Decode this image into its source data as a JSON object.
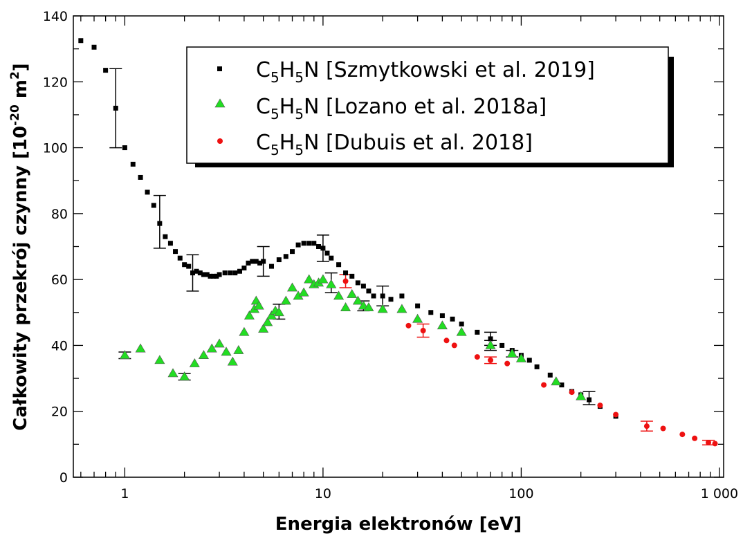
{
  "chart_data": {
    "type": "scatter",
    "title": "",
    "xlabel": "Energia elektronów [eV]",
    "ylabel": "Całkowity przekrój czynny [10⁻²⁰ m²]",
    "ylabel_parts": {
      "pre": "Całkowity przekrój czynny [10",
      "exp1": "-20",
      "mid": " m",
      "exp2": "2",
      "post": "]"
    },
    "x_scale": "log",
    "xlim": [
      0.55,
      1050
    ],
    "ylim": [
      0,
      140
    ],
    "x_ticks": [
      1,
      10,
      100,
      1000
    ],
    "x_tick_labels": [
      "1",
      "10",
      "100",
      "1 000"
    ],
    "y_ticks": [
      0,
      20,
      40,
      60,
      80,
      100,
      120,
      140
    ],
    "y_tick_labels": [
      "0",
      "20",
      "40",
      "60",
      "80",
      "100",
      "120",
      "140"
    ],
    "grid": false,
    "legend_position": "top-right",
    "series": [
      {
        "name": "C₅H₅N [Szmytkowski et al. 2019]",
        "label_parts": {
          "a": "C",
          "s1": "5",
          "b": "H",
          "s2": "5",
          "c": "N [Szmytkowski et al. 2019]"
        },
        "marker": "square",
        "color": "#000000",
        "points": [
          [
            0.6,
            132.5
          ],
          [
            0.7,
            130.5
          ],
          [
            0.8,
            123.5
          ],
          [
            0.9,
            112
          ],
          [
            1.0,
            100
          ],
          [
            1.1,
            95
          ],
          [
            1.2,
            91
          ],
          [
            1.3,
            86.5
          ],
          [
            1.4,
            82.5
          ],
          [
            1.5,
            77
          ],
          [
            1.6,
            73
          ],
          [
            1.7,
            71
          ],
          [
            1.8,
            68.5
          ],
          [
            1.9,
            66.5
          ],
          [
            2.0,
            64.5
          ],
          [
            2.1,
            64
          ],
          [
            2.2,
            62
          ],
          [
            2.3,
            62.5
          ],
          [
            2.4,
            62
          ],
          [
            2.5,
            61.5
          ],
          [
            2.6,
            61.5
          ],
          [
            2.7,
            61
          ],
          [
            2.8,
            61
          ],
          [
            2.9,
            61
          ],
          [
            3.0,
            61.5
          ],
          [
            3.2,
            62
          ],
          [
            3.4,
            62
          ],
          [
            3.6,
            62
          ],
          [
            3.8,
            62.5
          ],
          [
            4.0,
            63.5
          ],
          [
            4.2,
            65
          ],
          [
            4.4,
            65.5
          ],
          [
            4.6,
            65.5
          ],
          [
            4.8,
            65
          ],
          [
            5.0,
            65.5
          ],
          [
            5.5,
            64
          ],
          [
            6.0,
            66
          ],
          [
            6.5,
            67
          ],
          [
            7.0,
            68.5
          ],
          [
            7.5,
            70.5
          ],
          [
            8.0,
            71
          ],
          [
            8.5,
            71
          ],
          [
            9.0,
            71
          ],
          [
            9.5,
            70
          ],
          [
            10,
            69.5
          ],
          [
            10.5,
            68
          ],
          [
            11,
            66.5
          ],
          [
            12,
            64.5
          ],
          [
            13,
            62
          ],
          [
            14,
            61
          ],
          [
            15,
            59
          ],
          [
            16,
            58
          ],
          [
            17,
            56.5
          ],
          [
            18,
            55
          ],
          [
            20,
            55
          ],
          [
            22,
            54
          ],
          [
            25,
            55
          ],
          [
            30,
            52
          ],
          [
            35,
            50
          ],
          [
            40,
            49
          ],
          [
            45,
            48
          ],
          [
            50,
            46.5
          ],
          [
            60,
            44
          ],
          [
            70,
            42
          ],
          [
            80,
            40
          ],
          [
            90,
            38.5
          ],
          [
            100,
            37
          ],
          [
            110,
            35.5
          ],
          [
            120,
            33.5
          ],
          [
            140,
            31
          ],
          [
            160,
            28
          ],
          [
            180,
            26
          ],
          [
            200,
            25
          ],
          [
            220,
            23.5
          ],
          [
            250,
            21.5
          ],
          [
            300,
            18.5
          ]
        ],
        "error_bars": [
          [
            0.9,
            100,
            124
          ],
          [
            1.5,
            69.5,
            85.5
          ],
          [
            2.2,
            56.5,
            67.5
          ],
          [
            5.0,
            61,
            70
          ],
          [
            10,
            65.5,
            73.5
          ],
          [
            20,
            52,
            58
          ],
          [
            70,
            40,
            44
          ],
          [
            220,
            22,
            26
          ]
        ]
      },
      {
        "name": "C₅H₅N [Lozano et al. 2018a]",
        "label_parts": {
          "a": "C",
          "s1": "5",
          "b": "H",
          "s2": "5",
          "c": "N [Lozano et al. 2018a]"
        },
        "marker": "triangle",
        "color": "#22dd22",
        "points": [
          [
            1.0,
            37
          ],
          [
            1.2,
            39
          ],
          [
            1.5,
            35.5
          ],
          [
            1.75,
            31.5
          ],
          [
            2.0,
            30.5
          ],
          [
            2.25,
            34.5
          ],
          [
            2.5,
            37
          ],
          [
            2.75,
            39
          ],
          [
            3.0,
            40.5
          ],
          [
            3.25,
            38
          ],
          [
            3.5,
            35
          ],
          [
            3.75,
            38.5
          ],
          [
            4.0,
            44
          ],
          [
            4.25,
            49
          ],
          [
            4.5,
            51
          ],
          [
            4.6,
            53.5
          ],
          [
            4.75,
            52
          ],
          [
            5.0,
            45
          ],
          [
            5.25,
            47
          ],
          [
            5.5,
            49
          ],
          [
            5.75,
            50.5
          ],
          [
            6.0,
            50
          ],
          [
            6.5,
            53.5
          ],
          [
            7.0,
            57.5
          ],
          [
            7.5,
            55
          ],
          [
            8.0,
            56
          ],
          [
            8.5,
            60
          ],
          [
            9.0,
            58.5
          ],
          [
            9.5,
            59
          ],
          [
            10,
            60
          ],
          [
            11,
            58.5
          ],
          [
            12,
            55
          ],
          [
            13,
            51.5
          ],
          [
            14,
            55.5
          ],
          [
            15,
            53.5
          ],
          [
            16,
            52
          ],
          [
            17,
            51.5
          ],
          [
            20,
            51
          ],
          [
            25,
            51
          ],
          [
            30,
            48
          ],
          [
            40,
            46
          ],
          [
            50,
            44
          ],
          [
            70,
            40
          ],
          [
            90,
            37.5
          ],
          [
            100,
            36
          ],
          [
            150,
            29
          ],
          [
            200,
            24.5
          ]
        ],
        "error_bars": [
          [
            1.0,
            36,
            38
          ],
          [
            2.0,
            29.5,
            31.5
          ],
          [
            6.0,
            48,
            52.5
          ],
          [
            11,
            56,
            62
          ],
          [
            16,
            50.5,
            53.5
          ],
          [
            70,
            38.5,
            41.5
          ],
          [
            90,
            36.5,
            38.5
          ]
        ]
      },
      {
        "name": "C₅H₅N [Dubuis et al. 2018]",
        "label_parts": {
          "a": "C",
          "s1": "5",
          "b": "H",
          "s2": "5",
          "c": "N [Dubuis et al. 2018]"
        },
        "marker": "circle",
        "color": "#ee1111",
        "points": [
          [
            13,
            59.5
          ],
          [
            27,
            46
          ],
          [
            32,
            44.5
          ],
          [
            42,
            41.5
          ],
          [
            46,
            40
          ],
          [
            60,
            36.5
          ],
          [
            70,
            35.5
          ],
          [
            85,
            34.5
          ],
          [
            130,
            28
          ],
          [
            180,
            25.8
          ],
          [
            250,
            21.8
          ],
          [
            300,
            19
          ],
          [
            430,
            15.5
          ],
          [
            520,
            14.8
          ],
          [
            650,
            13
          ],
          [
            750,
            11.8
          ],
          [
            880,
            10.5
          ],
          [
            950,
            10.2
          ]
        ],
        "error_bars": [
          [
            13,
            57.5,
            61.5
          ],
          [
            32,
            42.5,
            46.5
          ],
          [
            70,
            34.5,
            36.5
          ],
          [
            430,
            14,
            17
          ],
          [
            880,
            9.8,
            11.2
          ]
        ]
      }
    ]
  }
}
